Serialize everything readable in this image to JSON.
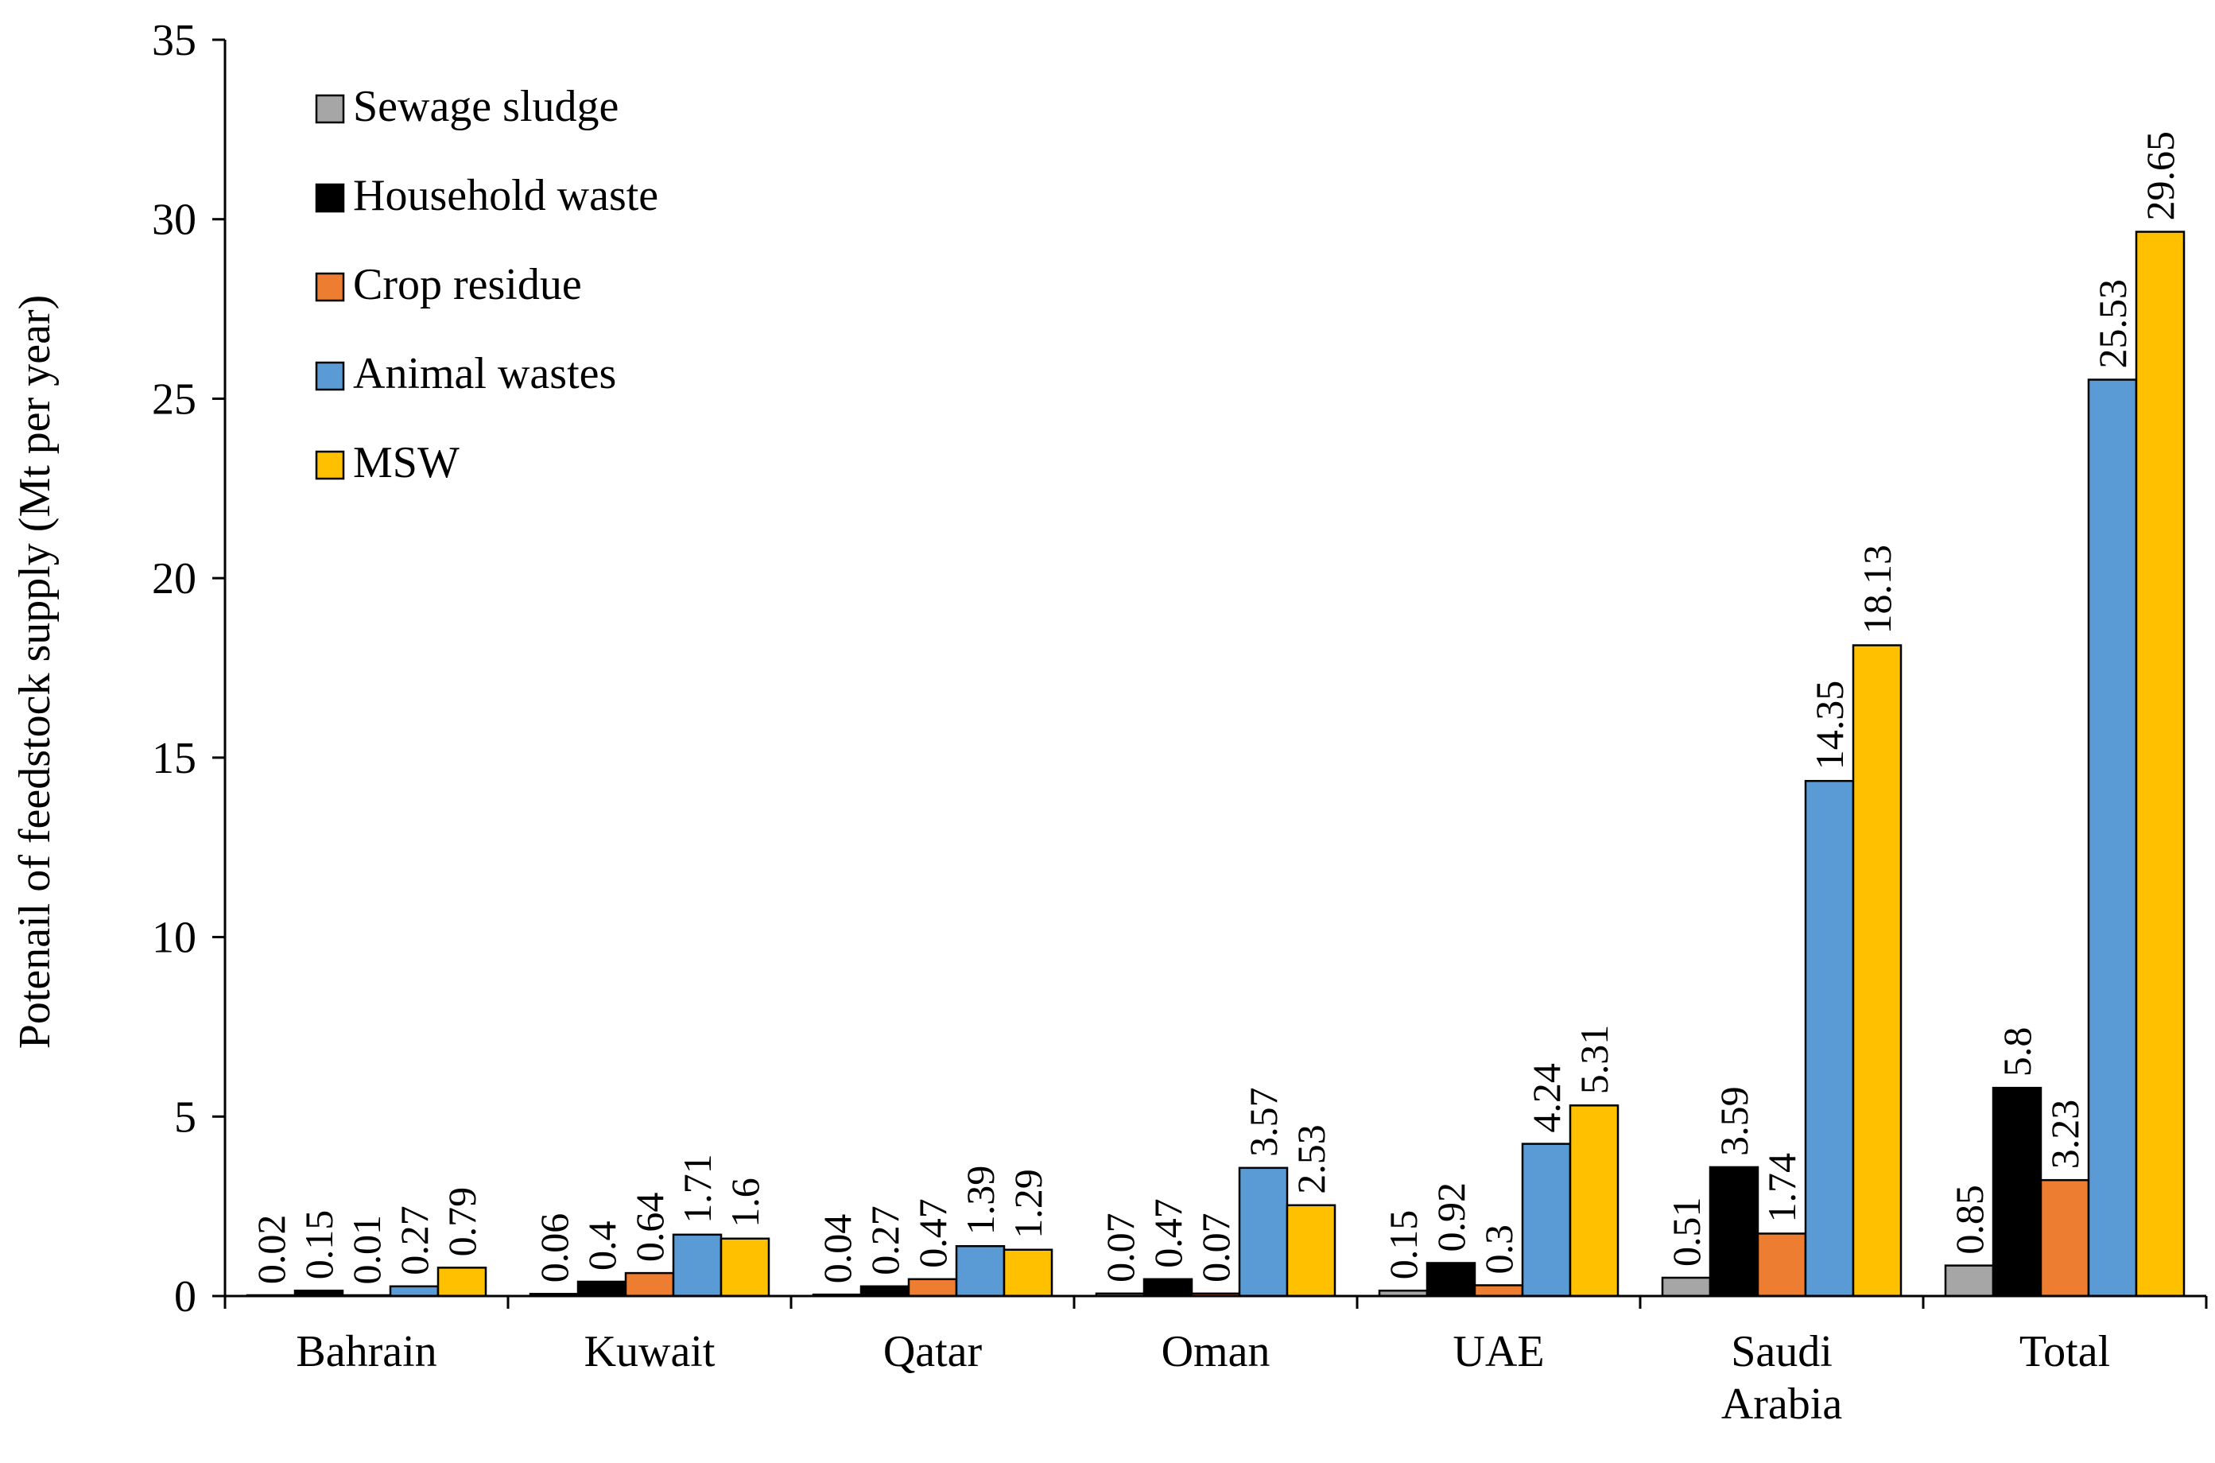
{
  "chart_data": {
    "type": "bar",
    "title": "",
    "xlabel": "",
    "ylabel": "Potenail of feedstock supply (Mt per year)",
    "ylim": [
      0,
      35
    ],
    "yticks": [
      0,
      5,
      10,
      15,
      20,
      25,
      30,
      35
    ],
    "categories": [
      "Bahrain",
      "Kuwait",
      "Qatar",
      "Oman",
      "UAE",
      "Saudi Arabia",
      "Total"
    ],
    "category_lines": [
      [
        "Bahrain"
      ],
      [
        "Kuwait"
      ],
      [
        "Qatar"
      ],
      [
        "Oman"
      ],
      [
        "UAE"
      ],
      [
        "Saudi",
        "Arabia"
      ],
      [
        "Total"
      ]
    ],
    "legend_position": "top-left",
    "series": [
      {
        "name": "Sewage sludge",
        "color": "#a6a6a6",
        "values": [
          0.02,
          0.06,
          0.04,
          0.07,
          0.15,
          0.51,
          0.85
        ]
      },
      {
        "name": "Household waste",
        "color": "#000000",
        "values": [
          0.15,
          0.4,
          0.27,
          0.47,
          0.92,
          3.59,
          5.8
        ]
      },
      {
        "name": "Crop residue",
        "color": "#ed7d31",
        "values": [
          0.01,
          0.64,
          0.47,
          0.07,
          0.3,
          1.74,
          3.23
        ]
      },
      {
        "name": "Animal wastes",
        "color": "#5b9bd5",
        "values": [
          0.27,
          1.71,
          1.39,
          3.57,
          4.24,
          14.35,
          25.53
        ]
      },
      {
        "name": "MSW",
        "color": "#ffc000",
        "values": [
          0.79,
          1.6,
          1.29,
          2.53,
          5.31,
          18.13,
          29.65
        ]
      }
    ]
  }
}
